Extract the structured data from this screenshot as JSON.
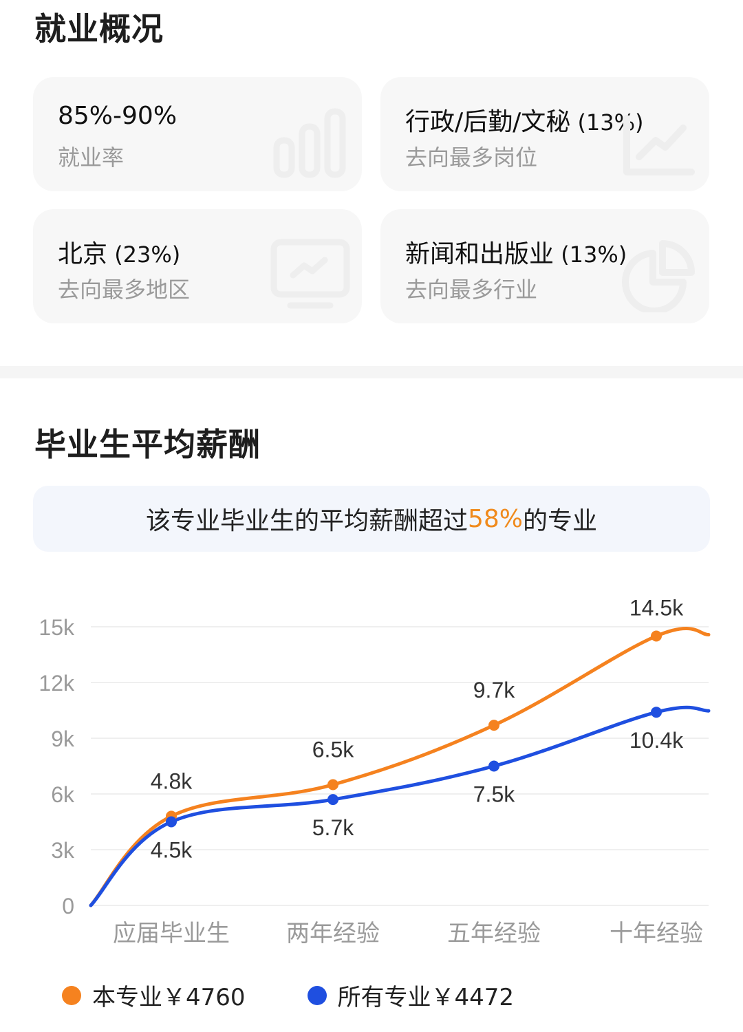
{
  "employment": {
    "title": "就业概况",
    "cards": [
      {
        "id": "rate",
        "main": "85%-90%",
        "pct": "",
        "sub": "就业率",
        "icon": "bar-chart-icon"
      },
      {
        "id": "job",
        "main": "行政/后勤/文秘",
        "pct": " (13%)",
        "sub": "去向最多岗位",
        "icon": "trend-chart-icon"
      },
      {
        "id": "region",
        "main": "北京",
        "pct": " (23%)",
        "sub": "去向最多地区",
        "icon": "monitor-chart-icon"
      },
      {
        "id": "industry",
        "main": "新闻和出版业",
        "pct": " (13%)",
        "sub": "去向最多行业",
        "icon": "pie-chart-icon"
      }
    ]
  },
  "salary": {
    "title": "毕业生平均薪酬",
    "banner": {
      "prefix": "该专业毕业生的平均薪酬超过 ",
      "highlight": "58%",
      "suffix": "的专业"
    },
    "legend": [
      {
        "label": "本专业￥4760",
        "color": "#f5821f"
      },
      {
        "label": "所有专业￥4472",
        "color": "#1f4fe0"
      }
    ]
  },
  "colors": {
    "orange": "#f5821f",
    "blue": "#1f4fe0",
    "accent": "#f08a1c",
    "grid": "#eeeeee",
    "axis_text": "#999999",
    "label_text": "#333333"
  },
  "chart_data": {
    "type": "line",
    "title": "毕业生平均薪酬",
    "xlabel": "",
    "ylabel": "",
    "categories": [
      "应届毕业生",
      "两年经验",
      "五年经验",
      "十年经验"
    ],
    "series": [
      {
        "name": "本专业",
        "values": [
          4800,
          6500,
          9700,
          14500
        ],
        "labels": [
          "4.8k",
          "6.5k",
          "9.7k",
          "14.5k"
        ],
        "color": "#f5821f",
        "legend_value": "￥4760"
      },
      {
        "name": "所有专业",
        "values": [
          4500,
          5700,
          7500,
          10400
        ],
        "labels": [
          "4.5k",
          "5.7k",
          "7.5k",
          "10.4k"
        ],
        "color": "#1f4fe0",
        "legend_value": "￥4472"
      }
    ],
    "yticks": [
      "0",
      "3k",
      "6k",
      "9k",
      "12k",
      "15k"
    ],
    "ylim": [
      0,
      15000
    ],
    "grid": true,
    "legend_position": "bottom"
  }
}
